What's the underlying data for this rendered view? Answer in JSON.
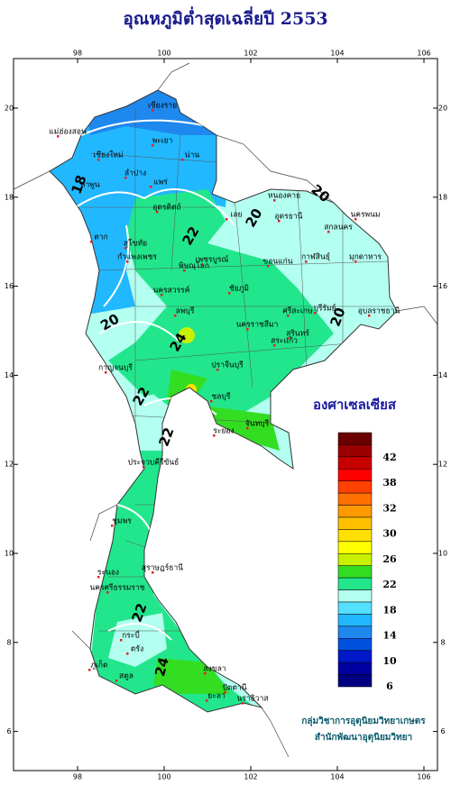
{
  "title": "อุณหภูมิต่ำสุดเฉลี่ยปี 2553",
  "map": {
    "lon_ticks": [
      98,
      100,
      102,
      104,
      106
    ],
    "lat_ticks": [
      6,
      8,
      10,
      12,
      14,
      16,
      18,
      20
    ],
    "places": [
      "เชียงราย",
      "แม่ฮ่องสอน",
      "เชียงใหม่",
      "พะเยา",
      "น่าน",
      "ลำพูน",
      "ลำปาง",
      "แพร่",
      "อุตรดิตถ์",
      "ตาก",
      "สุโขทัย",
      "เลย",
      "หนองคาย",
      "อุดรธานี",
      "สกลนคร",
      "นครพนม",
      "กาฬสินธุ์",
      "มุกดาหาร",
      "ขอนแก่น",
      "พิษณุโลก",
      "เพชรบูรณ์",
      "กำแพงเพชร",
      "นครสวรรค์",
      "ชัยภูมิ",
      "อุบลราชธานี",
      "นครราชสีมา",
      "สุรินทร์",
      "กาญจนบุรี",
      "ลพบุรี",
      "ปราจีนบุรี",
      "สระแก้ว",
      "ชลบุรี",
      "ระยอง",
      "จันทบุรี",
      "ประจวบคีรีขันธ์",
      "ชุมพร",
      "ระนอง",
      "สุราษฎร์ธานี",
      "นครศรีธรรมราช",
      "ภูเก็ต",
      "กระบี่",
      "ตรัง",
      "สงขลา",
      "ปัตตานี",
      "นราธิวาส",
      "ยะลา",
      "สตูล",
      "บุรีรัมย์",
      "ศรีสะเกษ"
    ],
    "contour_labels": [
      "18",
      "20",
      "22",
      "20",
      "20",
      "22",
      "20",
      "22",
      "24",
      "22",
      "24"
    ]
  },
  "legend": {
    "title": "องศาเซลเซียส",
    "labels": [
      "42",
      "38",
      "32",
      "30",
      "26",
      "22",
      "18",
      "14",
      "10",
      "6"
    ],
    "colors": [
      "#6b0000",
      "#9a0000",
      "#c80000",
      "#ff0000",
      "#ff4000",
      "#ff7000",
      "#ff9a00",
      "#ffc000",
      "#ffe000",
      "#ffff00",
      "#c8f000",
      "#33dd22",
      "#22e68c",
      "#b3fff0",
      "#55e0ff",
      "#22b8ff",
      "#1e88ee",
      "#0050e0",
      "#0018c8",
      "#0000a0",
      "#000080"
    ]
  },
  "credits": [
    "กลุ่มวิชาการอุตุนิยมวิทยาเกษตร",
    "สำนักพัฒนาอุตุนิยมวิทยา"
  ]
}
